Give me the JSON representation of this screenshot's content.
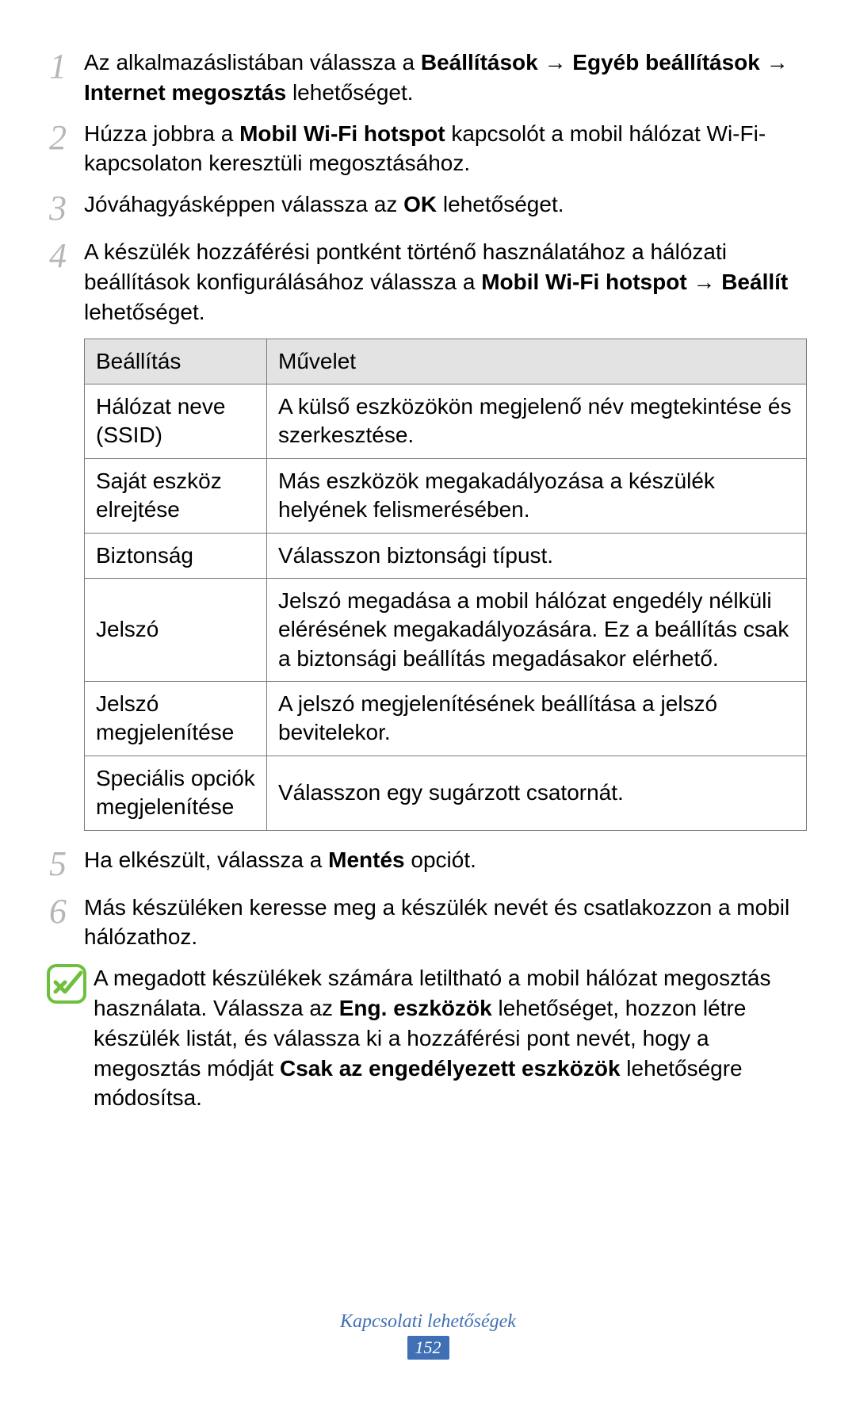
{
  "steps": [
    {
      "num": "1",
      "html": "Az alkalmazáslistában válassza a <b>Beállítások</b> → <b>Egyéb beállítások</b> → <b>Internet megosztás</b> lehetőséget."
    },
    {
      "num": "2",
      "html": "Húzza jobbra a <b>Mobil Wi-Fi hotspot</b> kapcsolót a mobil hálózat Wi-Fi-kapcsolaton keresztüli megosztásához."
    },
    {
      "num": "3",
      "html": "Jóváhagyásképpen válassza az <b>OK</b> lehetőséget."
    },
    {
      "num": "4",
      "html": "A készülék hozzáférési pontként történő használatához a hálózati beállítások konfigurálásához válassza a <b>Mobil Wi-Fi hotspot</b> → <b>Beállít</b> lehetőséget."
    }
  ],
  "table": {
    "headers": [
      "Beállítás",
      "Művelet"
    ],
    "rows": [
      [
        "Hálózat neve (SSID)",
        "A külső eszközökön megjelenő név megtekintése és szerkesztése."
      ],
      [
        "Saját eszköz elrejtése",
        "Más eszközök megakadályozása a készülék helyének felismerésében."
      ],
      [
        "Biztonság",
        "Válasszon biztonsági típust."
      ],
      [
        "Jelszó",
        "Jelszó megadása a mobil hálózat engedély nélküli elérésének megakadályozására. Ez a beállítás csak a biztonsági beállítás megadásakor elérhető."
      ],
      [
        "Jelszó megjelenítése",
        "A jelszó megjelenítésének beállítása a jelszó bevitelekor."
      ],
      [
        "Speciális opciók megjelenítése",
        "Válasszon egy sugárzott csatornát."
      ]
    ]
  },
  "steps2": [
    {
      "num": "5",
      "html": "Ha elkészült, válassza a <b>Mentés</b> opciót."
    },
    {
      "num": "6",
      "html": "Más készüléken keresse meg a készülék nevét és csatlakozzon a mobil hálózathoz."
    }
  ],
  "note": {
    "html": "A megadott készülékek számára letiltható a mobil hálózat megosztás használata. Válassza az <b>Eng. eszközök</b> lehetőséget, hozzon létre készülék listát, és válassza ki a hozzáférési pont nevét, hogy a megosztás módját <b>Csak az engedélyezett eszközök</b> lehetőségre módosítsa."
  },
  "footer": {
    "section": "Kapcsolati lehetőségek",
    "page": "152"
  },
  "colors": {
    "step_num": "#b6b6b6",
    "table_border": "#7a7a7a",
    "table_header_bg": "#e3e3e3",
    "accent_blue": "#3f6fb5",
    "note_icon_border": "#6fbf3f",
    "note_icon_stroke": "#6fbf3f"
  }
}
